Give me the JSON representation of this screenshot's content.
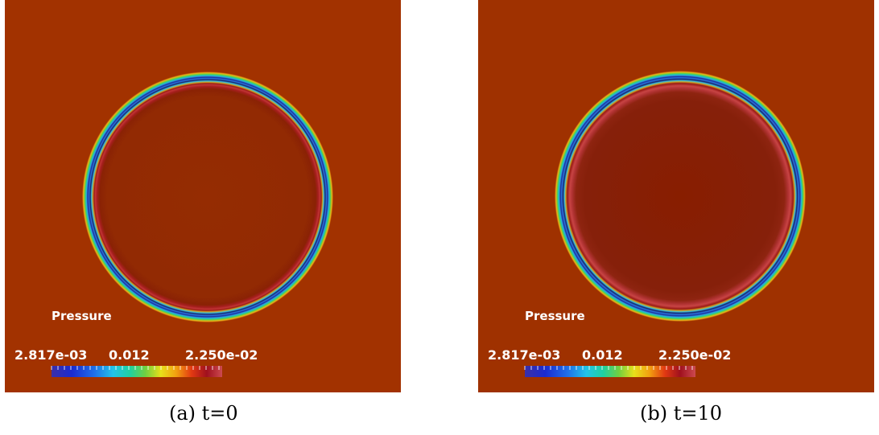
{
  "figure": {
    "panels": [
      {
        "id": "a",
        "caption": "(a) t=0",
        "field_label": "Pressure",
        "colorbar": {
          "min_label": "2.817e-03",
          "mid_label": "0.012",
          "max_label": "2.250e-02"
        },
        "colors": {
          "background": "#a23200",
          "interior": "#952c02"
        }
      },
      {
        "id": "b",
        "caption": "(b) t=10",
        "field_label": "Pressure",
        "colorbar": {
          "min_label": "2.817e-03",
          "mid_label": "0.012",
          "max_label": "2.250e-02"
        },
        "colors": {
          "background": "#9f3100",
          "interior": "#881e00"
        }
      }
    ],
    "colormap": [
      "#3b2fa8",
      "#1a2bd0",
      "#1f6fe8",
      "#22c3e8",
      "#1fd0a0",
      "#70d040",
      "#e8e01a",
      "#f2a010",
      "#e23a12",
      "#a0101e",
      "#cc4a50"
    ]
  }
}
